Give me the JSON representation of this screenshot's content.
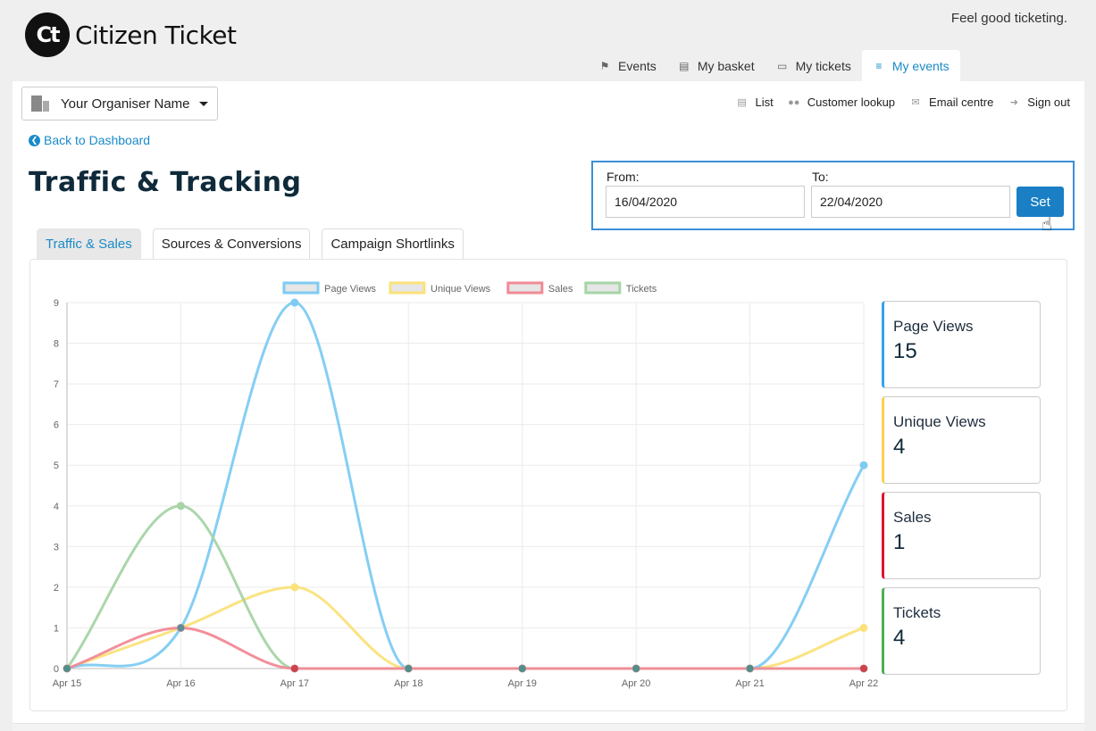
{
  "brand": {
    "logo_mark": "Ct",
    "name": "Citizen Ticket",
    "tagline": "Feel good ticketing."
  },
  "topnav": [
    {
      "label": "Events",
      "icon": "tags-icon"
    },
    {
      "label": "My basket",
      "icon": "basket-icon"
    },
    {
      "label": "My tickets",
      "icon": "ticket-icon"
    },
    {
      "label": "My events",
      "icon": "sliders-icon",
      "active": true
    }
  ],
  "organiser": {
    "selected": "Your Organiser Name",
    "icon": "building-icon"
  },
  "utilnav": [
    {
      "label": "List",
      "icon": "list-icon"
    },
    {
      "label": "Customer lookup",
      "icon": "users-icon"
    },
    {
      "label": "Email centre",
      "icon": "envelope-icon"
    },
    {
      "label": "Sign out",
      "icon": "sign-out-icon"
    }
  ],
  "back_link": "Back to Dashboard",
  "page_title": "Traffic & Tracking",
  "date_filter": {
    "from_label": "From:",
    "from_value": "16/04/2020",
    "to_label": "To:",
    "to_value": "22/04/2020",
    "set_label": "Set"
  },
  "tabs": [
    {
      "label": "Traffic & Sales",
      "active": true
    },
    {
      "label": "Sources & Conversions"
    },
    {
      "label": "Campaign Shortlinks"
    }
  ],
  "stats": [
    {
      "label": "Page Views",
      "value": "15",
      "color": "#36a2eb"
    },
    {
      "label": "Unique Views",
      "value": "4",
      "color": "#ffcd56"
    },
    {
      "label": "Sales",
      "value": "1",
      "color": "#e0142e"
    },
    {
      "label": "Tickets",
      "value": "4",
      "color": "#4caf50"
    }
  ],
  "chart_data": {
    "type": "line",
    "categories": [
      "Apr 15",
      "Apr 16",
      "Apr 17",
      "Apr 18",
      "Apr 19",
      "Apr 20",
      "Apr 21",
      "Apr 22"
    ],
    "ylim": [
      0,
      9
    ],
    "yticks": [
      "0",
      "1",
      "2",
      "3",
      "4",
      "5",
      "6",
      "7",
      "8",
      "9"
    ],
    "grid": true,
    "legend_position": "top",
    "series": [
      {
        "name": "Page Views",
        "color": "#7ecbf3",
        "values": [
          0,
          1,
          9,
          0,
          0,
          0,
          0,
          5
        ]
      },
      {
        "name": "Unique Views",
        "color": "#fbe27a",
        "values": [
          0,
          1,
          2,
          0,
          0,
          0,
          0,
          1
        ]
      },
      {
        "name": "Sales",
        "color": "#f18a96",
        "values": [
          0,
          1,
          0,
          0,
          0,
          0,
          0,
          0
        ]
      },
      {
        "name": "Tickets",
        "color": "#a6d4a6",
        "values": [
          0,
          4,
          0,
          0,
          0,
          0,
          0,
          0
        ]
      }
    ]
  }
}
